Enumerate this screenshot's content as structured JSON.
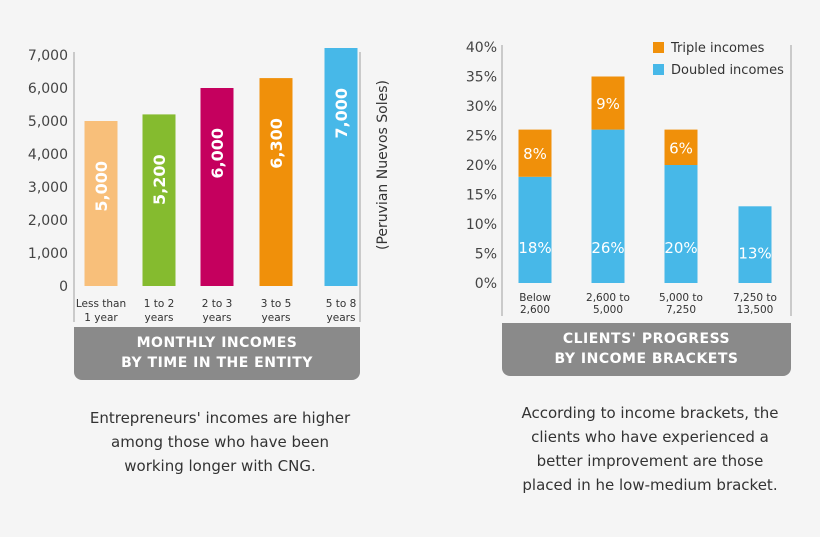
{
  "chart_data": [
    {
      "type": "bar",
      "title": "MONTHLY INCOMES\nBY TIME IN THE ENTITY",
      "title_lines": [
        "MONTHLY INCOMES",
        "BY TIME IN THE ENTITY"
      ],
      "ylabel": "(Peruvian Nuevos Soles)",
      "categories": [
        [
          "Less than",
          "1 year"
        ],
        [
          "1 to 2",
          "years"
        ],
        [
          "2 to 3",
          "years"
        ],
        [
          "3 to 5",
          "years"
        ],
        [
          "5 to 8",
          "years"
        ]
      ],
      "values": [
        5000,
        5200,
        6000,
        6300,
        7000
      ],
      "data_labels": [
        "5,000",
        "5,200",
        "6,000",
        "6,300",
        "7,000"
      ],
      "colors": [
        "#f8bf7a",
        "#85bb2f",
        "#c5005e",
        "#f0900a",
        "#47b8e8"
      ],
      "yticks": [
        "0",
        "1,000",
        "2,000",
        "3,000",
        "4,000",
        "5,000",
        "6,000",
        "7,000"
      ],
      "ylim": [
        0,
        7000
      ],
      "grid": false,
      "caption": [
        "Entrepreneurs' incomes are higher",
        "among those who have been",
        "working longer with CNG."
      ]
    },
    {
      "type": "bar",
      "stacked": true,
      "title_lines": [
        "CLIENTS' PROGRESS",
        "BY INCOME BRACKETS"
      ],
      "categories": [
        [
          "Below",
          "2,600"
        ],
        [
          "2,600 to",
          "5,000"
        ],
        [
          "5,000 to",
          "7,250"
        ],
        [
          "7,250 to",
          "13,500"
        ]
      ],
      "series": [
        {
          "name": "Doubled incomes",
          "color": "#47b8e8",
          "values": [
            18,
            26,
            20,
            13
          ],
          "labels": [
            "18%",
            "26%",
            "20%",
            "13%"
          ]
        },
        {
          "name": "Triple incomes",
          "color": "#f0900a",
          "values": [
            8,
            9,
            6,
            0
          ],
          "labels": [
            "8%",
            "9%",
            "6%",
            ""
          ]
        }
      ],
      "yticks": [
        "0%",
        "5%",
        "10%",
        "15%",
        "20%",
        "25%",
        "30%",
        "35%",
        "40%"
      ],
      "ylim": [
        0,
        40
      ],
      "legend": "top-right",
      "legend_order": [
        "Triple incomes",
        "Doubled incomes"
      ],
      "grid": false,
      "caption": [
        "According to income brackets, the",
        "clients who have experienced a",
        "better improvement are those",
        "placed in he low-medium bracket."
      ]
    }
  ]
}
